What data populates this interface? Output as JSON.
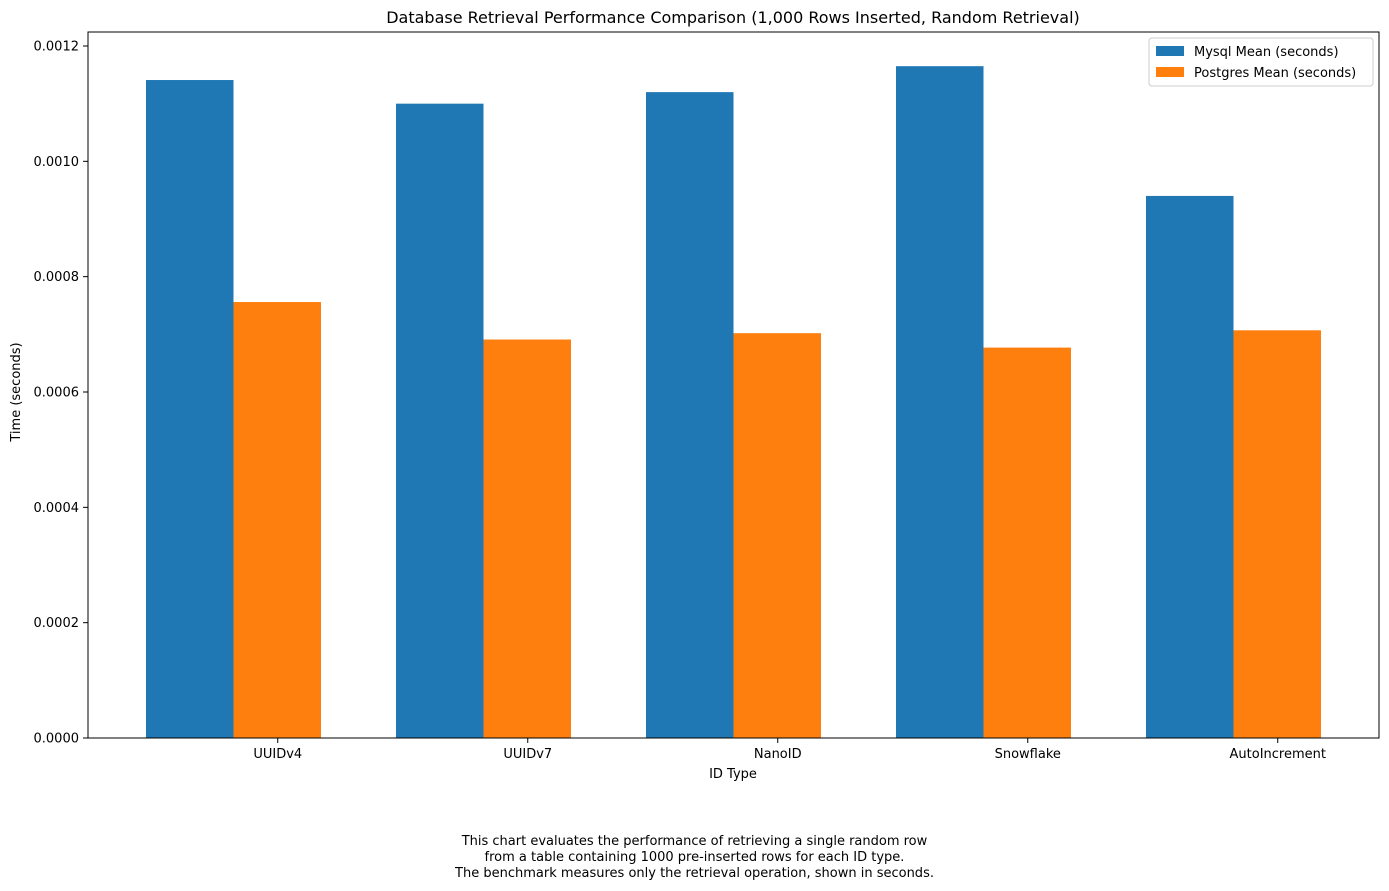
{
  "chart_data": {
    "type": "bar",
    "title": "Database Retrieval Performance Comparison (1,000 Rows Inserted, Random Retrieval)",
    "xlabel": "ID Type",
    "ylabel": "Time (seconds)",
    "categories": [
      "UUIDv4",
      "UUIDv7",
      "NanoID",
      "Snowflake",
      "AutoIncrement"
    ],
    "series": [
      {
        "name": "Mysql Mean (seconds)",
        "color": "#1f77b4",
        "values": [
          0.001141,
          0.0011,
          0.00112,
          0.001165,
          0.00094
        ]
      },
      {
        "name": "Postgres Mean (seconds)",
        "color": "#ff7f0e",
        "values": [
          0.000756,
          0.000691,
          0.000702,
          0.000677,
          0.000707
        ]
      }
    ],
    "ylim": [
      0,
      0.0012
    ],
    "yticks": [
      "0.0000",
      "0.0002",
      "0.0004",
      "0.0006",
      "0.0008",
      "0.0010",
      "0.0012"
    ],
    "grid": false,
    "legend_position": "top-right"
  },
  "caption": {
    "lines": [
      "This chart evaluates the performance of retrieving a single random row",
      "from a table containing 1000 pre-inserted rows for each ID type.",
      "The benchmark measures only the retrieval operation, shown in seconds."
    ]
  }
}
